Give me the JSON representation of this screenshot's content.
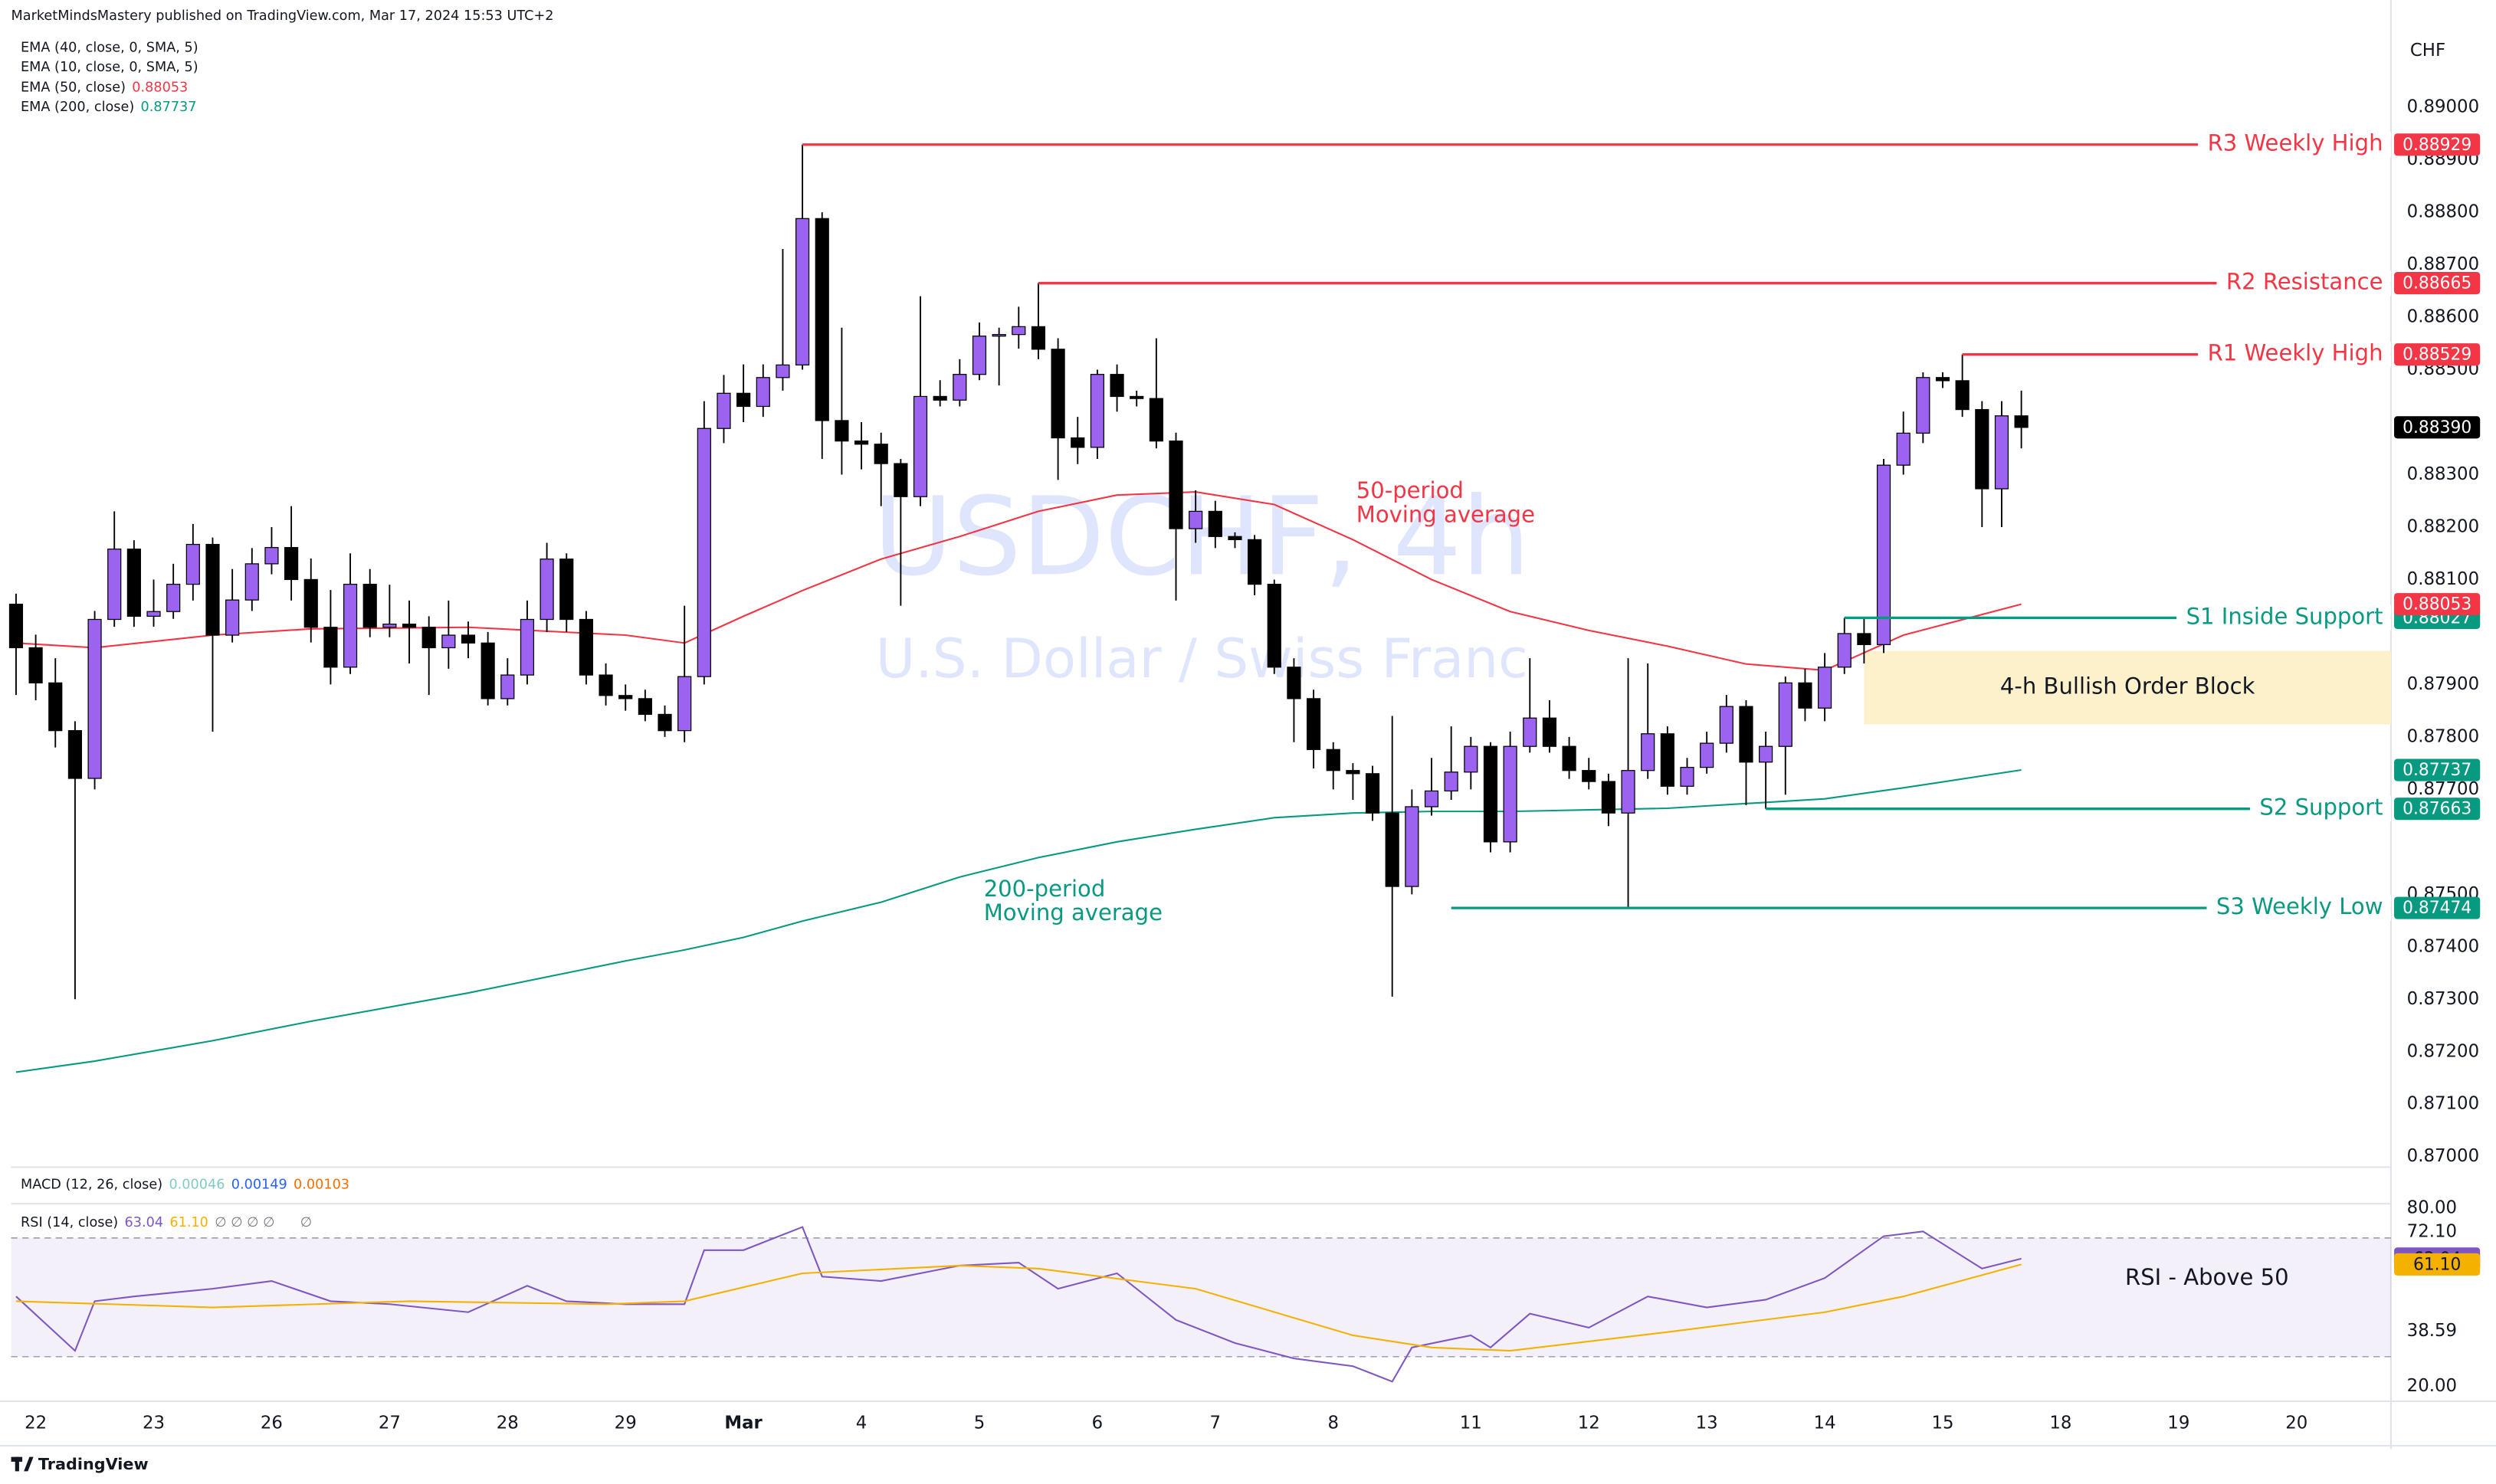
{
  "header": {
    "publisher": "MarketMindsMastery published on TradingView.com, Mar 17, 2024 15:53 UTC+2",
    "currency": "CHF",
    "watermark_symbol": "USDCHF, 4h",
    "watermark_name": "U.S. Dollar / Swiss Franc",
    "footer": "TradingView"
  },
  "macd": {
    "name": "MACD (12, 26, close)",
    "values": [
      0.00046,
      0.00149,
      0.00103
    ],
    "colors": [
      "#80cbc4",
      "#2962ff",
      "#ff6d00"
    ]
  },
  "chart_data": [
    {
      "type": "candlestick",
      "up_color": "#9b63f0",
      "down_color": "#000000",
      "open": [
        0.88053,
        0.8797,
        0.87903,
        0.87812,
        0.87721,
        0.88024,
        0.88158,
        0.8803,
        0.88039,
        0.88091,
        0.88167,
        0.87994,
        0.88061,
        0.8813,
        0.88161,
        0.881,
        0.88009,
        0.87933,
        0.88091,
        0.88009,
        0.88015,
        0.88009,
        0.8797,
        0.87994,
        0.87979,
        0.87873,
        0.87918,
        0.88024,
        0.88139,
        0.88024,
        0.87918,
        0.87879,
        0.87873,
        0.87843,
        0.87812,
        0.87915,
        0.88388,
        0.88455,
        0.8843,
        0.88485,
        0.88509,
        0.88788,
        0.88403,
        0.88364,
        0.88358,
        0.88321,
        0.88258,
        0.88449,
        0.88442,
        0.88491,
        0.88564,
        0.88567,
        0.88582,
        0.88539,
        0.8837,
        0.88352,
        0.88491,
        0.88449,
        0.88445,
        0.88364,
        0.88197,
        0.8823,
        0.88182,
        0.88176,
        0.88091,
        0.87933,
        0.87873,
        0.87776,
        0.87736,
        0.8773,
        0.87655,
        0.87515,
        0.87667,
        0.87697,
        0.87733,
        0.87782,
        0.876,
        0.87782,
        0.87836,
        0.87782,
        0.87736,
        0.87715,
        0.87655,
        0.87736,
        0.87806,
        0.87706,
        0.87742,
        0.87788,
        0.87858,
        0.87752,
        0.87782,
        0.87903,
        0.87855,
        0.87933,
        0.87997,
        0.87976,
        0.88318,
        0.88379,
        0.88485,
        0.88479,
        0.88424,
        0.88273,
        0.88412
      ],
      "high": [
        0.88073,
        0.87995,
        0.8795,
        0.8783,
        0.8804,
        0.8823,
        0.88175,
        0.881,
        0.8813,
        0.88206,
        0.8818,
        0.8812,
        0.8816,
        0.882,
        0.8824,
        0.8814,
        0.8808,
        0.8815,
        0.8812,
        0.8809,
        0.8806,
        0.8803,
        0.8806,
        0.8802,
        0.88,
        0.8795,
        0.8806,
        0.8817,
        0.8815,
        0.8804,
        0.8794,
        0.879,
        0.8789,
        0.8786,
        0.8805,
        0.8844,
        0.8849,
        0.8851,
        0.8851,
        0.8873,
        0.88929,
        0.888,
        0.8858,
        0.884,
        0.8838,
        0.8833,
        0.8864,
        0.8848,
        0.8852,
        0.8859,
        0.8858,
        0.8862,
        0.88665,
        0.8856,
        0.8841,
        0.885,
        0.8851,
        0.8846,
        0.8856,
        0.8838,
        0.8827,
        0.8825,
        0.8819,
        0.88185,
        0.881,
        0.8795,
        0.8789,
        0.8779,
        0.8775,
        0.87745,
        0.8784,
        0.877,
        0.8776,
        0.8782,
        0.878,
        0.8779,
        0.8781,
        0.8795,
        0.8787,
        0.878,
        0.8776,
        0.8773,
        0.8795,
        0.8794,
        0.8782,
        0.8776,
        0.8781,
        0.8788,
        0.8787,
        0.8781,
        0.87915,
        0.8793,
        0.8796,
        0.88027,
        0.88027,
        0.8833,
        0.8842,
        0.88495,
        0.88495,
        0.88529,
        0.8844,
        0.8844,
        0.8846
      ],
      "low": [
        0.8788,
        0.8787,
        0.8778,
        0.873,
        0.877,
        0.8801,
        0.8801,
        0.8801,
        0.88025,
        0.8806,
        0.8781,
        0.8798,
        0.8804,
        0.8811,
        0.8806,
        0.8798,
        0.879,
        0.8792,
        0.8799,
        0.8799,
        0.8794,
        0.8788,
        0.8793,
        0.8795,
        0.8786,
        0.8786,
        0.879,
        0.88,
        0.88,
        0.879,
        0.8786,
        0.8785,
        0.8783,
        0.878,
        0.8779,
        0.879,
        0.8836,
        0.884,
        0.8841,
        0.8846,
        0.885,
        0.8833,
        0.883,
        0.8831,
        0.8824,
        0.8805,
        0.8824,
        0.8843,
        0.8843,
        0.8848,
        0.8847,
        0.8854,
        0.8852,
        0.8829,
        0.8832,
        0.8833,
        0.8842,
        0.8843,
        0.8835,
        0.8806,
        0.8817,
        0.8816,
        0.8816,
        0.8807,
        0.8792,
        0.8779,
        0.8774,
        0.877,
        0.8768,
        0.8764,
        0.87305,
        0.875,
        0.8765,
        0.8768,
        0.877,
        0.8758,
        0.8758,
        0.8777,
        0.8777,
        0.8772,
        0.877,
        0.8763,
        0.87474,
        0.8772,
        0.8769,
        0.8769,
        0.8773,
        0.8777,
        0.8767,
        0.87663,
        0.8769,
        0.8783,
        0.8783,
        0.8792,
        0.8794,
        0.8796,
        0.883,
        0.8836,
        0.88465,
        0.8841,
        0.882,
        0.882,
        0.8835
      ],
      "close": [
        0.8797,
        0.87903,
        0.87812,
        0.87721,
        0.88024,
        0.88158,
        0.8803,
        0.88039,
        0.88091,
        0.88167,
        0.87994,
        0.88061,
        0.8813,
        0.88161,
        0.881,
        0.88009,
        0.87933,
        0.88091,
        0.88009,
        0.88015,
        0.88009,
        0.8797,
        0.87994,
        0.87979,
        0.87873,
        0.87918,
        0.88024,
        0.88139,
        0.88024,
        0.87918,
        0.87879,
        0.87873,
        0.87843,
        0.87812,
        0.87915,
        0.88388,
        0.88455,
        0.8843,
        0.88485,
        0.88509,
        0.88788,
        0.88403,
        0.88364,
        0.88358,
        0.88321,
        0.88258,
        0.88449,
        0.88442,
        0.88491,
        0.88564,
        0.88567,
        0.88582,
        0.88539,
        0.8837,
        0.88352,
        0.88491,
        0.88449,
        0.88445,
        0.88364,
        0.88197,
        0.8823,
        0.88182,
        0.88176,
        0.88091,
        0.87933,
        0.87873,
        0.87776,
        0.87736,
        0.8773,
        0.87655,
        0.87515,
        0.87667,
        0.87697,
        0.87733,
        0.87782,
        0.876,
        0.87782,
        0.87836,
        0.87782,
        0.87736,
        0.87715,
        0.87655,
        0.87736,
        0.87806,
        0.87706,
        0.87742,
        0.87788,
        0.87858,
        0.87752,
        0.87782,
        0.87903,
        0.87855,
        0.87933,
        0.87997,
        0.87976,
        0.88318,
        0.88379,
        0.88485,
        0.88479,
        0.88424,
        0.88273,
        0.88412,
        0.8839
      ],
      "last_price": {
        "value": 0.8839,
        "label": "0.88390"
      },
      "xlim": [
        -0.25,
        120.8
      ],
      "ylim": [
        0.8698,
        0.8915
      ],
      "xticks": [
        {
          "value": 1,
          "label": "22"
        },
        {
          "value": 7,
          "label": "23"
        },
        {
          "value": 13,
          "label": "26"
        },
        {
          "value": 19,
          "label": "27"
        },
        {
          "value": 25,
          "label": "28"
        },
        {
          "value": 31,
          "label": "29"
        },
        {
          "value": 37,
          "label": "Mar"
        },
        {
          "value": 43,
          "label": "4"
        },
        {
          "value": 49,
          "label": "5"
        },
        {
          "value": 55,
          "label": "6"
        },
        {
          "value": 61,
          "label": "7"
        },
        {
          "value": 67,
          "label": "8"
        },
        {
          "value": 74,
          "label": "11"
        },
        {
          "value": 80,
          "label": "12"
        },
        {
          "value": 86,
          "label": "13"
        },
        {
          "value": 92,
          "label": "14"
        },
        {
          "value": 98,
          "label": "15"
        },
        {
          "value": 104,
          "label": "18"
        },
        {
          "value": 110,
          "label": "19"
        },
        {
          "value": 116,
          "label": "20"
        }
      ],
      "yticks": [
        {
          "value": 0.89,
          "label": "0.89000"
        },
        {
          "value": 0.889,
          "label": "0.88900"
        },
        {
          "value": 0.888,
          "label": "0.88800"
        },
        {
          "value": 0.887,
          "label": "0.88700"
        },
        {
          "value": 0.886,
          "label": "0.88600"
        },
        {
          "value": 0.885,
          "label": "0.88500"
        },
        {
          "value": 0.883,
          "label": "0.88300"
        },
        {
          "value": 0.882,
          "label": "0.88200"
        },
        {
          "value": 0.881,
          "label": "0.88100"
        },
        {
          "value": 0.879,
          "label": "0.87900"
        },
        {
          "value": 0.878,
          "label": "0.87800"
        },
        {
          "value": 0.877,
          "label": "0.87700"
        },
        {
          "value": 0.875,
          "label": "0.87500"
        },
        {
          "value": 0.874,
          "label": "0.87400"
        },
        {
          "value": 0.873,
          "label": "0.87300"
        },
        {
          "value": 0.872,
          "label": "0.87200"
        },
        {
          "value": 0.871,
          "label": "0.87100"
        },
        {
          "value": 0.87,
          "label": "0.87000"
        }
      ],
      "indicator_legend": [
        "EMA (40, close, 0, SMA, 5)",
        "EMA (10, close, 0, SMA, 5)"
      ],
      "series": [
        {
          "name": "EMA (50, close)",
          "color": "#f23645",
          "x": [
            0,
            4,
            10,
            15,
            23,
            31,
            34,
            37,
            40,
            44,
            48,
            52,
            56,
            60,
            64,
            68,
            72,
            76,
            80,
            84,
            88,
            92,
            96,
            102
          ],
          "values": [
            0.87979,
            0.8797,
            0.87994,
            0.88006,
            0.88009,
            0.87994,
            0.87979,
            0.8803,
            0.88079,
            0.88139,
            0.88182,
            0.8823,
            0.88261,
            0.88267,
            0.88243,
            0.88176,
            0.881,
            0.88039,
            0.88003,
            0.87973,
            0.87939,
            0.87927,
            0.87994,
            0.88053
          ]
        },
        {
          "name": "EMA (200, close)",
          "color": "#089981",
          "x": [
            0,
            4,
            10,
            15,
            23,
            31,
            34,
            37,
            40,
            44,
            48,
            52,
            56,
            60,
            64,
            68,
            72,
            76,
            80,
            84,
            88,
            92,
            96,
            102
          ],
          "values": [
            0.87161,
            0.87182,
            0.87221,
            0.87258,
            0.87312,
            0.87373,
            0.87394,
            0.87418,
            0.87449,
            0.87485,
            0.87533,
            0.8757,
            0.876,
            0.87624,
            0.87646,
            0.87655,
            0.87658,
            0.87658,
            0.87661,
            0.87664,
            0.87673,
            0.87682,
            0.87703,
            0.87737
          ]
        }
      ],
      "levels": [
        {
          "label": "R3 Weekly High",
          "value": 0.88929,
          "start": 40,
          "color": "#f23645"
        },
        {
          "label": "R2 Resistance",
          "value": 0.88665,
          "start": 52,
          "color": "#f23645"
        },
        {
          "label": "R1 Weekly High",
          "value": 0.88529,
          "start": 99,
          "color": "#f23645"
        },
        {
          "label": "S1 Inside Support",
          "value": 0.88027,
          "start": 93,
          "color": "#089981"
        },
        {
          "label": "S2 Support",
          "value": 0.87663,
          "start": 89,
          "color": "#089981"
        },
        {
          "label": "S3 Weekly Low",
          "value": 0.87474,
          "start": 73,
          "color": "#089981"
        }
      ],
      "zone": {
        "label": "4-h Bullish Order Block",
        "from": 0.87824,
        "to": 0.87964,
        "start": 94,
        "color": "#fdf1cc"
      },
      "annotations": [
        {
          "lines": [
            "50-period",
            "Moving average"
          ],
          "color": "#f23645"
        },
        {
          "lines": [
            "200-period",
            "Moving average"
          ],
          "color": "#089981"
        }
      ]
    },
    {
      "type": "line",
      "title": "RSI (14, close)",
      "legend_extra": [
        "∅ ∅ ∅ ∅",
        "∅"
      ],
      "annotation": "RSI - Above 50",
      "ylim": [
        15,
        81
      ],
      "yticks": [
        {
          "value": 80,
          "label": "80.00"
        },
        {
          "value": 72.1,
          "label": "72.10"
        },
        38.59,
        {
          "value": 20,
          "label": "20.00"
        }
      ],
      "band": [
        30,
        70
      ],
      "band_color": "#7e57c2",
      "series": [
        {
          "color": "#7e57c2",
          "x": [
            0,
            3,
            4,
            6,
            10,
            13,
            16,
            19,
            23,
            26,
            28,
            31,
            34,
            35,
            37,
            40,
            41,
            44,
            48,
            51,
            53,
            56,
            59,
            62,
            65,
            68,
            70,
            71,
            74,
            75,
            77,
            80,
            83,
            86,
            89,
            92,
            95,
            97,
            100,
            102
          ],
          "values": [
            50.3,
            32.0,
            48.7,
            50.3,
            52.9,
            55.5,
            48.7,
            47.7,
            45.0,
            53.9,
            48.7,
            47.7,
            47.7,
            65.9,
            65.9,
            73.7,
            57.0,
            55.5,
            60.7,
            61.7,
            52.9,
            58.1,
            42.4,
            34.6,
            29.4,
            26.8,
            21.6,
            33.1,
            37.2,
            33.1,
            44.5,
            39.8,
            50.3,
            46.6,
            49.2,
            56.5,
            70.6,
            72.2,
            59.7,
            63.04
          ]
        },
        {
          "color": "#f5b100",
          "x": [
            0,
            10,
            20,
            30,
            34,
            40,
            48,
            52,
            60,
            68,
            72,
            76,
            84,
            92,
            96,
            102
          ],
          "values": [
            48.7,
            46.6,
            48.7,
            47.7,
            48.7,
            58.1,
            60.7,
            59.7,
            52.9,
            37.2,
            33.1,
            32.0,
            38.3,
            45.0,
            50.3,
            61.1
          ],
          "value_label": "61.10"
        }
      ]
    }
  ]
}
